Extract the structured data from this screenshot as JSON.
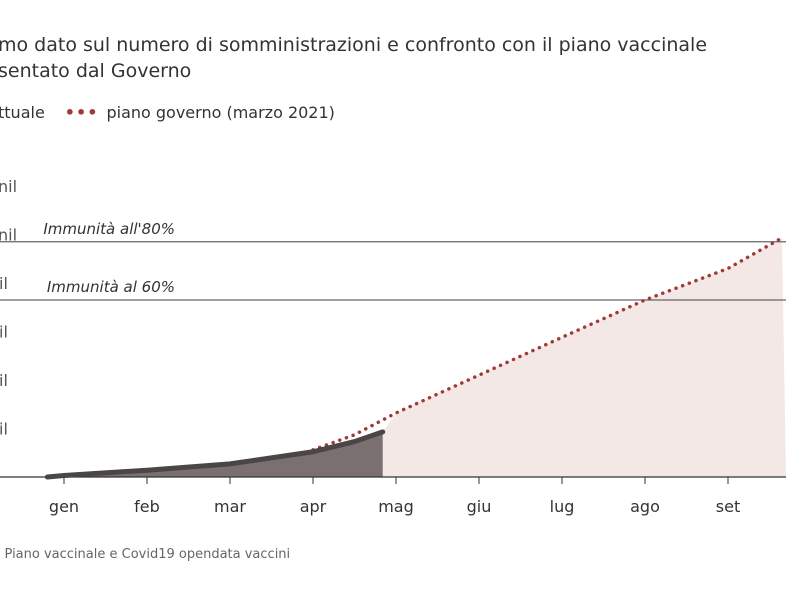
{
  "title_lines": [
    "mo dato sul numero di somministrazioni e confronto con il piano vaccinale",
    "sentato dal Governo"
  ],
  "legend": {
    "actual": "ttuale",
    "plan": "piano governo (marzo 2021)"
  },
  "source": ": Piano vaccinale e Covid19 opendata vaccini",
  "colors": {
    "actual": "#4a4646",
    "actual_fill": "#7a7070",
    "plan": "#a03a36",
    "plan_fill": "#f4e8e6"
  },
  "chart_data": {
    "type": "line",
    "title": "mo dato sul numero di somministrazioni e confronto con il piano vaccinale sentato dal Governo",
    "x_tick_labels": [
      "gen",
      "feb",
      "mar",
      "apr",
      "mag",
      "giu",
      "lug",
      "ago",
      "set"
    ],
    "y_tick_labels": [
      "il",
      "il",
      "il",
      "il",
      "nil",
      "nil"
    ],
    "y_tick_values": [
      10,
      20,
      30,
      40,
      50,
      60
    ],
    "ylim": [
      0,
      65
    ],
    "x_units": "month index (0=gen)",
    "series": [
      {
        "name": "ttuale",
        "x": [
          -0.2,
          0,
          1,
          2,
          3,
          3.5,
          3.84
        ],
        "y": [
          0,
          0.3,
          1.4,
          2.7,
          5.2,
          7.3,
          9.3
        ]
      },
      {
        "name": "piano governo (marzo 2021)",
        "x": [
          3,
          3.5,
          4,
          5,
          6,
          7,
          8,
          8.65
        ],
        "y": [
          5.6,
          8.7,
          13.2,
          21,
          28.8,
          36.5,
          43,
          49.3
        ]
      }
    ],
    "reference_lines": [
      {
        "label": "Immunità all'80%",
        "y": 48.5
      },
      {
        "label": "Immunità al 60%",
        "y": 36.5
      }
    ]
  }
}
